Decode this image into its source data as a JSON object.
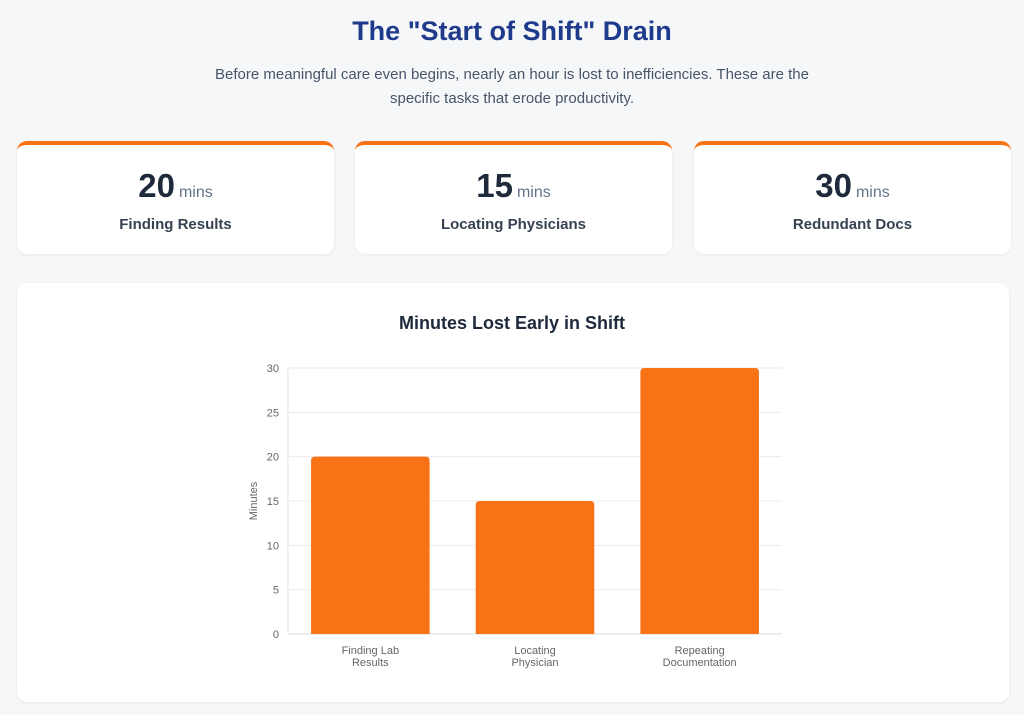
{
  "header": {
    "title": "The \"Start of Shift\" Drain",
    "subtitle": "Before meaningful care even begins, nearly an hour is lost to inefficiencies. These are the specific tasks that erode productivity."
  },
  "stats": [
    {
      "value": "20",
      "unit": "mins",
      "label": "Finding Results"
    },
    {
      "value": "15",
      "unit": "mins",
      "label": "Locating Physicians"
    },
    {
      "value": "30",
      "unit": "mins",
      "label": "Redundant Docs"
    }
  ],
  "colors": {
    "accent": "#f97316",
    "title": "#1e3a8a"
  },
  "chart_data": {
    "type": "bar",
    "title": "Minutes Lost Early in Shift",
    "categories": [
      [
        "Finding Lab",
        "Results"
      ],
      [
        "Locating",
        "Physician"
      ],
      [
        "Repeating",
        "Documentation"
      ]
    ],
    "values": [
      20,
      15,
      30
    ],
    "xlabel": "",
    "ylabel": "Minutes",
    "ylim": [
      0,
      30
    ],
    "yticks": [
      0,
      5,
      10,
      15,
      20,
      25,
      30
    ],
    "grid": true,
    "legend": "none",
    "color": "#f97316"
  }
}
